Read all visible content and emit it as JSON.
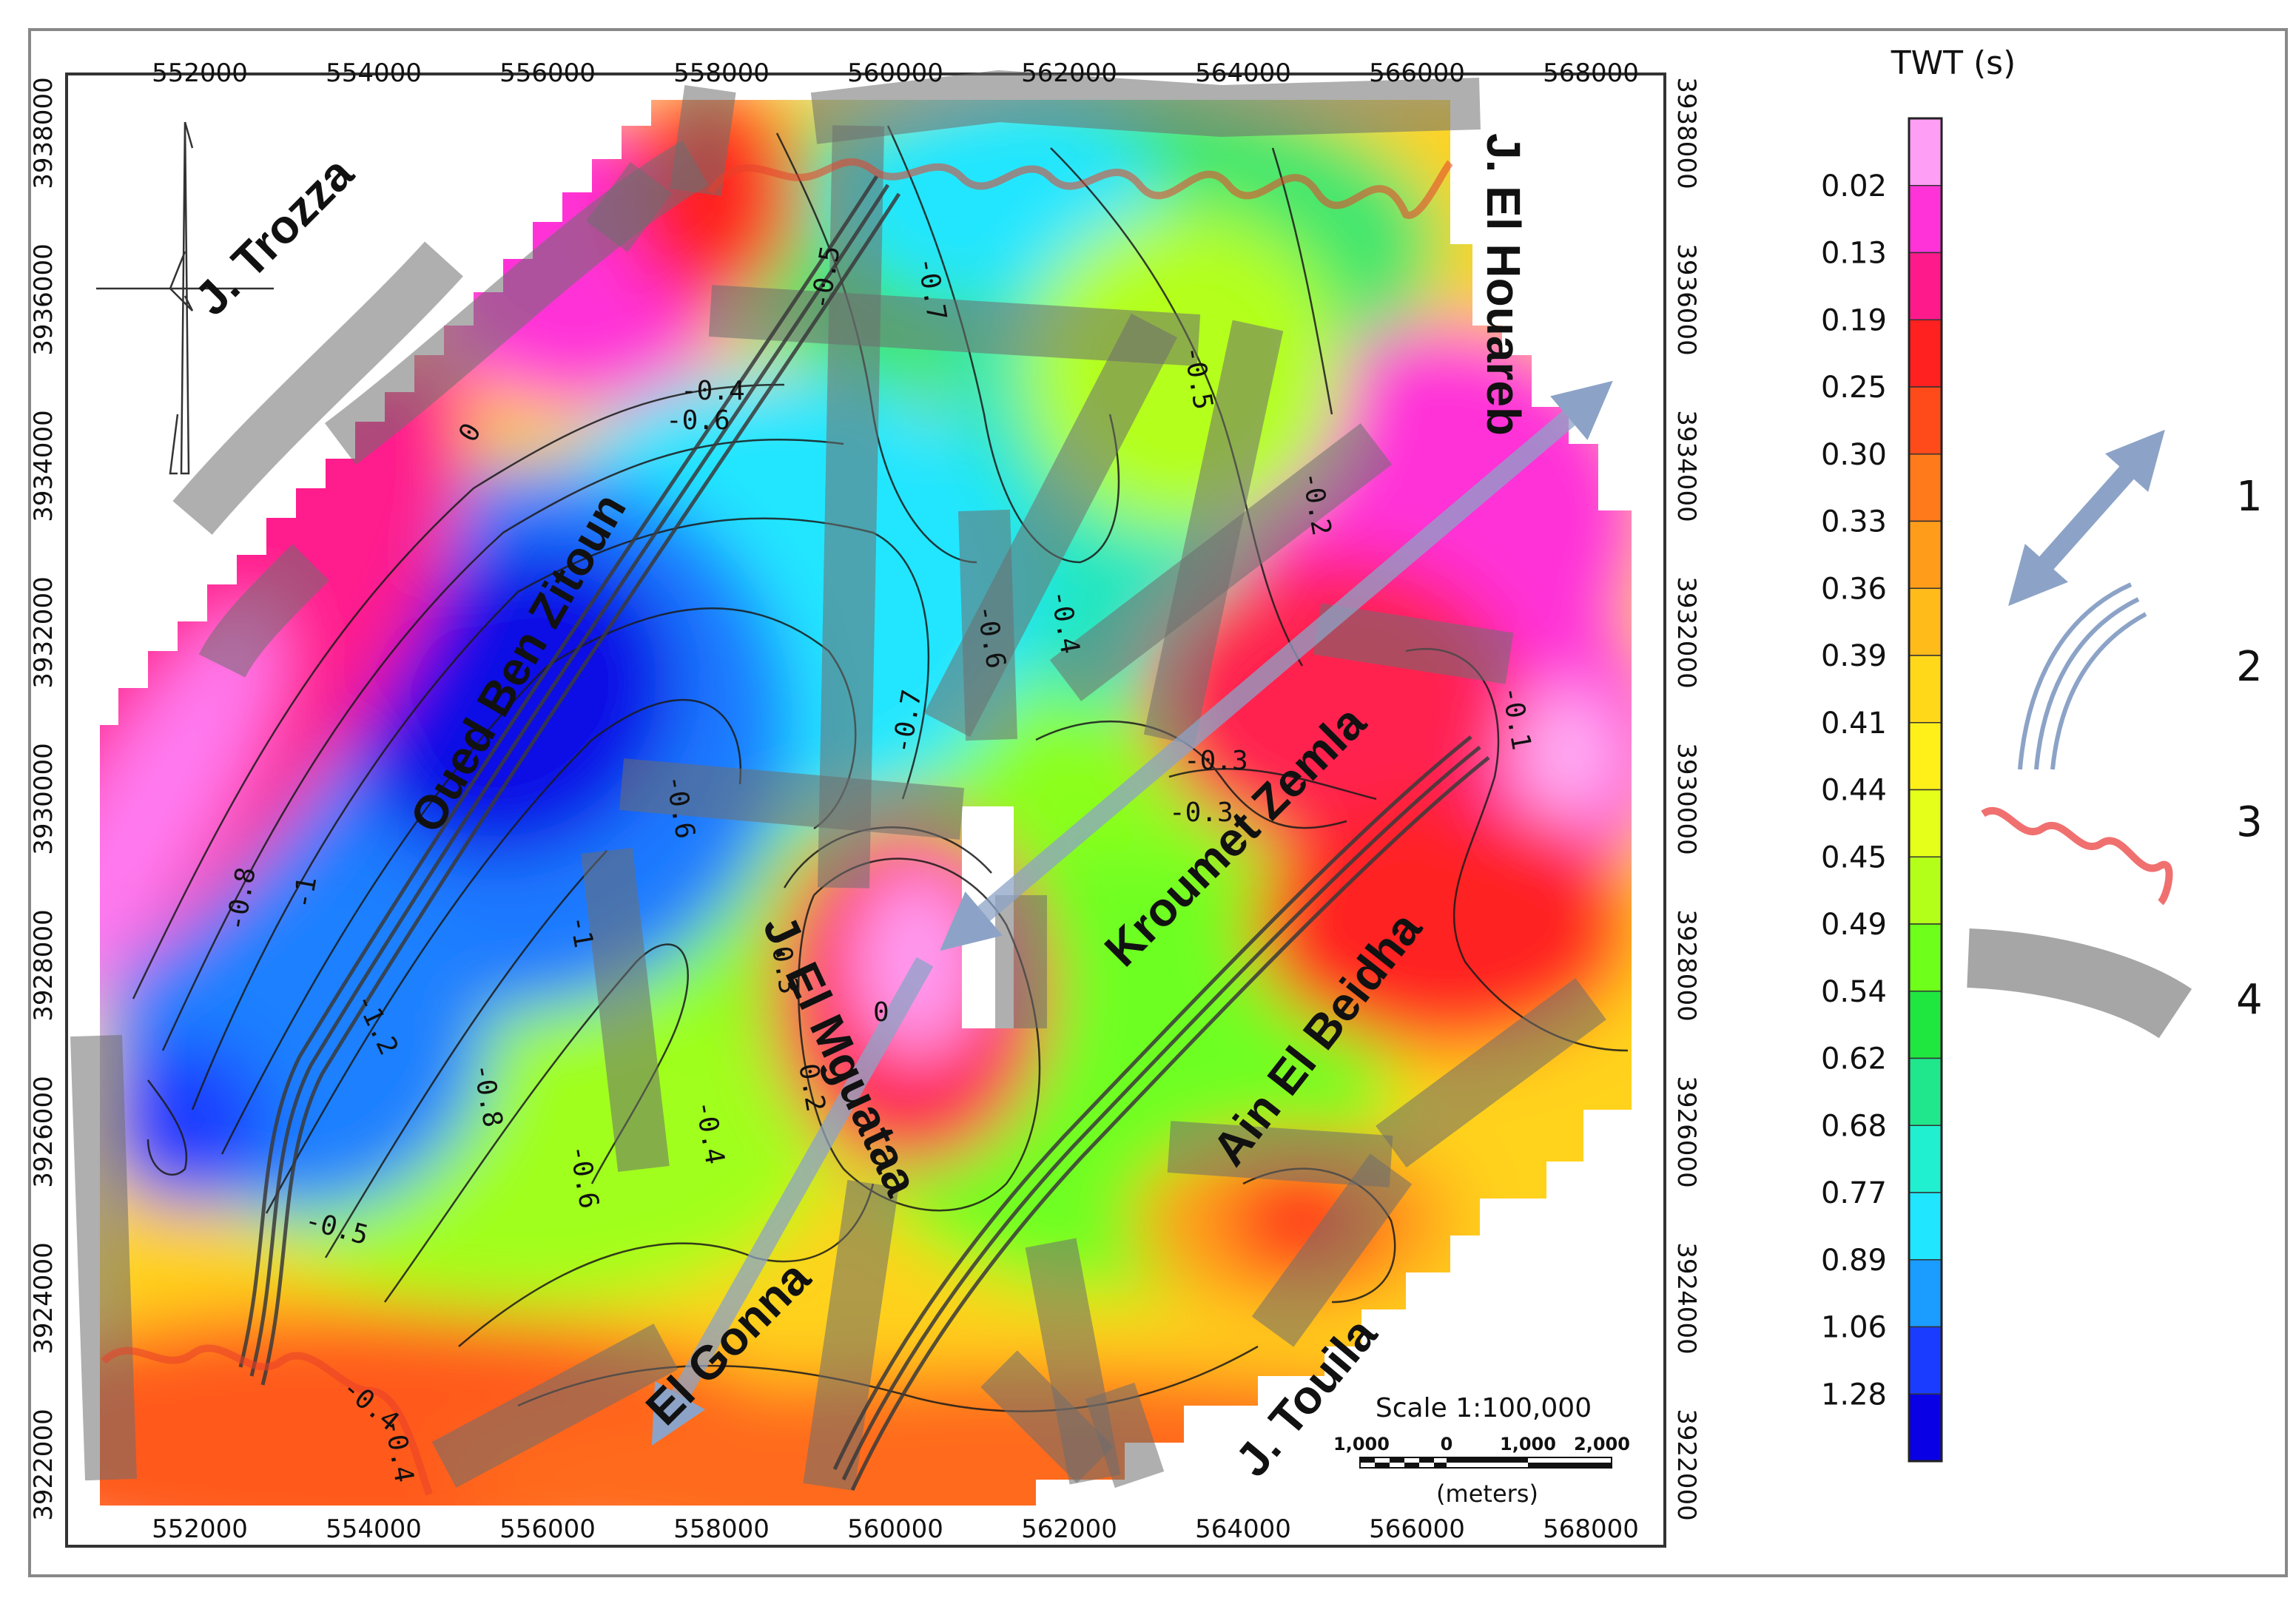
{
  "figure": {
    "colorbar": {
      "title": "TWT (s)",
      "stops": [
        "0.02",
        "0.13",
        "0.19",
        "0.25",
        "0.30",
        "0.33",
        "0.36",
        "0.39",
        "0.41",
        "0.44",
        "0.45",
        "0.49",
        "0.54",
        "0.62",
        "0.68",
        "0.77",
        "0.89",
        "1.06",
        "1.28"
      ],
      "colors": [
        "#ff9ef5",
        "#ff33d8",
        "#ff1a8c",
        "#ff2020",
        "#ff4a1a",
        "#ff7a1a",
        "#ff9d1a",
        "#ffbb1a",
        "#ffd81a",
        "#fff01a",
        "#e6ff1a",
        "#b4ff1a",
        "#6eff1a",
        "#20e640",
        "#20e68c",
        "#20f0d0",
        "#20e6ff",
        "#1a9dff",
        "#1a3cff",
        "#0a00e6"
      ]
    },
    "axes": {
      "x_ticks": [
        "552000",
        "554000",
        "556000",
        "558000",
        "560000",
        "562000",
        "564000",
        "566000",
        "568000"
      ],
      "y_ticks": [
        "3938000",
        "3936000",
        "3934000",
        "3932000",
        "3930000",
        "3928000",
        "3926000",
        "3924000",
        "3922000"
      ]
    },
    "place_names": {
      "j_trozza": "J. Trozza",
      "j_el_houareb": "J. El Houareb",
      "oued_ben_zitoun": "Oued Ben Zitoun",
      "kroumet_zemla": "Kroumet Zemla",
      "j_el_mguataa": "J. El Mguataa",
      "ain_el_beidha": "Ain El Beidha",
      "el_gonna": "El Gonna",
      "j_touila": "J. Touila"
    },
    "contour_labels": [
      "0",
      "-0.4",
      "-0.6",
      "-0.5",
      "-0.7",
      "-1",
      "-1.2",
      "-0.8",
      "-0.5",
      "-0.4",
      "-0.6",
      "-0.7",
      "-0.6",
      "-0.4",
      "-0.5",
      "-0.2",
      "-0.3",
      "-0.3",
      "0.2",
      "-0.3",
      "0",
      "-0.4",
      "-0.6",
      "-0.8",
      "-1",
      "-0.4",
      "-0.1"
    ],
    "scale": {
      "title": "Scale 1:100,000",
      "ticks": [
        "1,000",
        "0",
        "1,000",
        "2,000"
      ],
      "unit": "(meters)"
    },
    "legend_items": [
      {
        "number": "1",
        "symbol": "double-arrow-icon",
        "color": "#8ca3c7"
      },
      {
        "number": "2",
        "symbol": "triple-line-icon",
        "color": "#8ca3c7"
      },
      {
        "number": "3",
        "symbol": "wavy-line-icon",
        "color": "#f07070"
      },
      {
        "number": "4",
        "symbol": "thick-band-icon",
        "color": "#a6a6a6"
      }
    ]
  }
}
